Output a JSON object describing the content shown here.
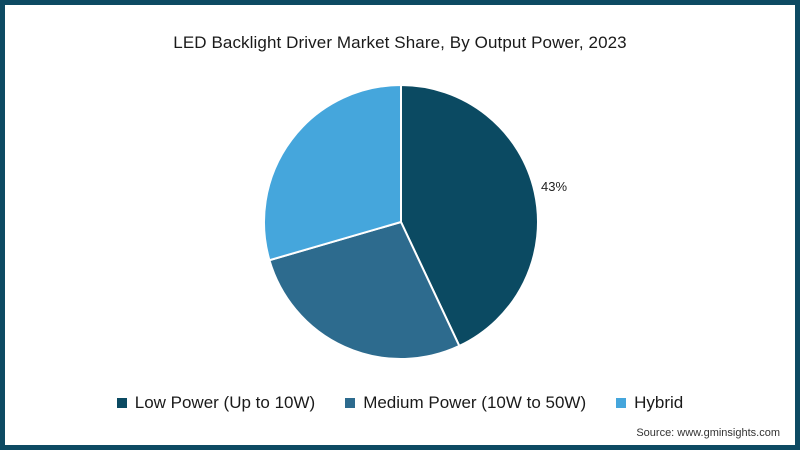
{
  "chart_data": {
    "type": "pie",
    "title": "LED Backlight Driver Market Share, By Output Power, 2023",
    "categories": [
      "Low Power (Up to 10W)",
      "Medium Power (10W to 50W)",
      "Hybrid"
    ],
    "values": [
      43,
      27.5,
      29.5
    ],
    "colors": [
      "#0b4a62",
      "#2d6b8e",
      "#45a6dc"
    ],
    "data_labels": [
      {
        "category": "Low Power (Up to 10W)",
        "text": "43%"
      }
    ],
    "start_angle_deg": 0,
    "direction": "clockwise",
    "legend_position": "bottom"
  },
  "title": "LED Backlight Driver Market Share, By Output Power, 2023",
  "legend": [
    {
      "label": "Low Power (Up to 10W)",
      "color": "#0b4a62"
    },
    {
      "label": "Medium Power (10W to 50W)",
      "color": "#2d6b8e"
    },
    {
      "label": "Hybrid",
      "color": "#45a6dc"
    }
  ],
  "pie_label": "43%",
  "source": "Source: www.gminsights.com",
  "frame_color": "#0d4a63"
}
